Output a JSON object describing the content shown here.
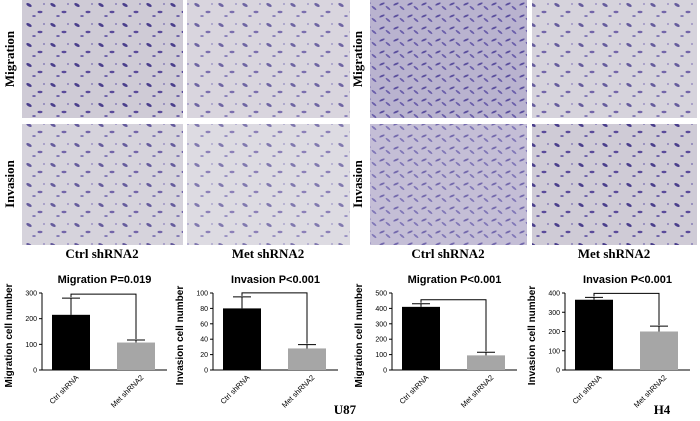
{
  "rows": [
    "Migration",
    "Invasion"
  ],
  "columns": [
    "Ctrl  shRNA2",
    "Met  shRNA2",
    "Ctrl  shRNA2",
    "Met  shRNA2"
  ],
  "groups": [
    "U87",
    "H4"
  ],
  "chart_data": [
    {
      "type": "bar",
      "title": "Migration  P=0.019",
      "y_label": "Migration cell number",
      "categories": [
        "Ctrl  shRNA",
        "Met  shRNA2"
      ],
      "values": [
        215,
        107
      ],
      "errors": [
        65,
        10
      ],
      "colors": [
        "#000000",
        "#a6a6a6"
      ],
      "ylim": [
        0,
        300
      ],
      "yticks": [
        0,
        100,
        200,
        300
      ]
    },
    {
      "type": "bar",
      "title": "Invasion  P<0.001",
      "y_label": "Invasion cell number",
      "categories": [
        "Ctrl  shRNA",
        "Met  shRNA2"
      ],
      "values": [
        80,
        28
      ],
      "errors": [
        15,
        5
      ],
      "colors": [
        "#000000",
        "#a6a6a6"
      ],
      "ylim": [
        0,
        100
      ],
      "yticks": [
        0,
        20,
        40,
        60,
        80,
        100
      ]
    },
    {
      "type": "bar",
      "title": "Migration  P<0.001",
      "y_label": "Migration cell number",
      "categories": [
        "Ctrl  shRNA",
        "Met  shRNA2"
      ],
      "values": [
        410,
        95
      ],
      "errors": [
        20,
        20
      ],
      "colors": [
        "#000000",
        "#a6a6a6"
      ],
      "ylim": [
        0,
        500
      ],
      "yticks": [
        0,
        100,
        200,
        300,
        400,
        500
      ]
    },
    {
      "type": "bar",
      "title": "Invasion  P<0.001",
      "y_label": "Invasion cell number",
      "categories": [
        "Ctrl  shRNA",
        "Met  shRNA2"
      ],
      "values": [
        365,
        200
      ],
      "errors": [
        12,
        28
      ],
      "colors": [
        "#000000",
        "#a6a6a6"
      ],
      "ylim": [
        0,
        400
      ],
      "yticks": [
        0,
        100,
        200,
        300,
        400
      ]
    }
  ]
}
